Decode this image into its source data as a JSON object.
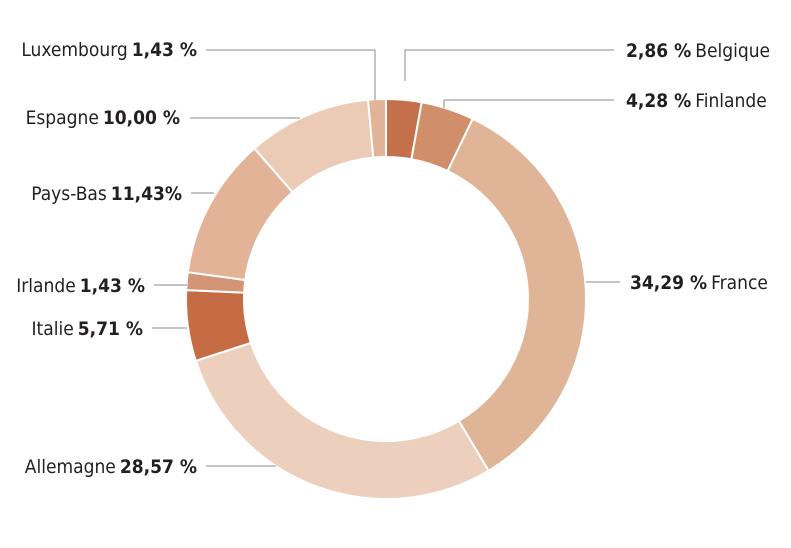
{
  "chart_data": {
    "type": "pie",
    "donut": true,
    "legend": "none",
    "slices": [
      {
        "name": "Belgique",
        "value": 2.86,
        "value_label": "2,86 %",
        "color": "#c4704a",
        "name_first": false
      },
      {
        "name": "Finlande",
        "value": 4.28,
        "value_label": "4,28 %",
        "color": "#d08e6b",
        "name_first": false
      },
      {
        "name": "France",
        "value": 34.29,
        "value_label": "34,29 %",
        "color": "#e0b497",
        "name_first": false
      },
      {
        "name": "Allemagne",
        "value": 28.57,
        "value_label": "28,57 %",
        "color": "#ecd0bd",
        "name_first": true
      },
      {
        "name": "Italie",
        "value": 5.71,
        "value_label": "5,71 %",
        "color": "#c56c45",
        "name_first": true
      },
      {
        "name": "Irlande",
        "value": 1.43,
        "value_label": "1,43 %",
        "color": "#d39576",
        "name_first": true
      },
      {
        "name": "Pays-Bas",
        "value": 11.43,
        "value_label": "11,43%",
        "color": "#e2b396",
        "name_first": true
      },
      {
        "name": "Espagne",
        "value": 10.0,
        "value_label": "10,00 %",
        "color": "#eccbb6",
        "name_first": true
      },
      {
        "name": "Luxembourg",
        "value": 1.43,
        "value_label": "1,43 %",
        "color": "#e1b497",
        "name_first": true
      }
    ]
  }
}
